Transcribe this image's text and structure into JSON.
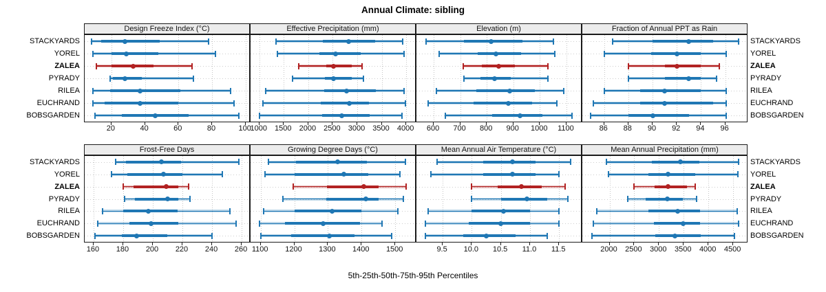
{
  "title": "Annual Climate: sibling",
  "footer": "5th-25th-50th-75th-95th Percentiles",
  "sites": [
    "STACKYARDS",
    "YOREL",
    "ZALEA",
    "PYRADY",
    "RILEA",
    "EUCHRAND",
    "BOBSGARDEN"
  ],
  "highlight_site": "ZALEA",
  "percentile_labels": [
    "5th",
    "25th",
    "50th",
    "75th",
    "95th"
  ],
  "colors": {
    "series_blue": "#1f77b4",
    "series_blue_light": "rgba(31,119,180,0.30)",
    "highlight_red": "#b22222",
    "highlight_red_light": "rgba(178,34,34,0.30)",
    "header_bg": "#ececec",
    "border": "#1a1a1a",
    "grid_dots": "#c4c4c4"
  },
  "chart_data": [
    {
      "type": "interval-dotplot",
      "title": "Design Freeze Index (°C)",
      "domain": [
        4,
        103
      ],
      "ticks": [
        20,
        40,
        60,
        80,
        100
      ],
      "tick_labels": [
        "20",
        "40",
        "60",
        "80",
        "100"
      ],
      "values": [
        [
          8,
          14,
          28,
          49,
          78
        ],
        [
          9,
          20,
          29,
          48,
          82
        ],
        [
          11,
          20,
          33,
          45,
          68
        ],
        [
          19,
          21,
          28,
          38,
          69
        ],
        [
          9,
          19,
          37,
          61,
          91
        ],
        [
          9,
          16,
          37,
          60,
          93
        ],
        [
          10,
          26,
          46,
          66,
          96
        ]
      ]
    },
    {
      "type": "interval-dotplot",
      "title": "Effective Precipitation (mm)",
      "domain": [
        820,
        4210
      ],
      "ticks": [
        1000,
        1500,
        2000,
        2500,
        3000,
        3500,
        4000
      ],
      "tick_labels": [
        "1000",
        "1500",
        "2000",
        "2500",
        "3000",
        "3500",
        "4000"
      ],
      "values": [
        [
          1340,
          2300,
          2820,
          3370,
          3930
        ],
        [
          1370,
          2230,
          2560,
          3070,
          3960
        ],
        [
          1810,
          2360,
          2510,
          2880,
          3100
        ],
        [
          1680,
          2340,
          2510,
          2890,
          3130
        ],
        [
          1130,
          2320,
          2780,
          3380,
          3950
        ],
        [
          1070,
          2260,
          2840,
          3240,
          3990
        ],
        [
          1000,
          2280,
          2680,
          3250,
          3920
        ]
      ]
    },
    {
      "type": "interval-dotplot",
      "title": "Elevation (m)",
      "domain": [
        535,
        1160
      ],
      "ticks": [
        600,
        700,
        800,
        900,
        1000,
        1100
      ],
      "tick_labels": [
        "600",
        "700",
        "800",
        "900",
        "1000",
        "1100"
      ],
      "values": [
        [
          570,
          715,
          815,
          935,
          1050
        ],
        [
          620,
          765,
          835,
          930,
          1055
        ],
        [
          710,
          780,
          845,
          905,
          1030
        ],
        [
          715,
          775,
          830,
          890,
          1030
        ],
        [
          610,
          760,
          885,
          980,
          1090
        ],
        [
          580,
          750,
          880,
          970,
          1065
        ],
        [
          645,
          820,
          925,
          1010,
          1120
        ]
      ]
    },
    {
      "type": "interval-dotplot",
      "title": "Fraction of Annual PPT as Rain",
      "domain": [
        84.2,
        97.9
      ],
      "ticks": [
        86,
        88,
        90,
        92,
        94,
        96
      ],
      "tick_labels": [
        "86",
        "88",
        "90",
        "92",
        "94",
        "96"
      ],
      "values": [
        [
          86.7,
          90.0,
          93.0,
          95.0,
          97.1
        ],
        [
          86.0,
          89.9,
          92.0,
          94.0,
          96.1
        ],
        [
          88.0,
          91.0,
          92.0,
          94.0,
          95.5
        ],
        [
          88.0,
          91.0,
          93.0,
          94.0,
          95.3
        ],
        [
          86.0,
          89.0,
          91.0,
          94.0,
          96.1
        ],
        [
          85.1,
          89.0,
          91.0,
          95.0,
          96.1
        ],
        [
          84.9,
          88.0,
          90.0,
          93.0,
          96.1
        ]
      ]
    },
    {
      "type": "interval-dotplot",
      "title": "Frost-Free Days",
      "domain": [
        154,
        266
      ],
      "ticks": [
        160,
        180,
        200,
        220,
        240,
        260
      ],
      "tick_labels": [
        "160",
        "180",
        "200",
        "220",
        "240",
        "260"
      ],
      "values": [
        [
          175,
          182,
          206,
          219,
          258
        ],
        [
          172,
          183,
          207,
          220,
          247
        ],
        [
          180,
          187,
          209,
          217,
          224
        ],
        [
          181,
          188,
          210,
          217,
          225
        ],
        [
          166,
          180,
          197,
          217,
          252
        ],
        [
          163,
          184,
          199,
          217,
          256
        ],
        [
          161,
          179,
          189,
          210,
          240
        ]
      ]
    },
    {
      "type": "interval-dotplot",
      "title": "Growing Degree Days (°C)",
      "domain": [
        1070,
        1563
      ],
      "ticks": [
        1100,
        1200,
        1300,
        1400,
        1500
      ],
      "tick_labels": [
        "1100",
        "1200",
        "1300",
        "1400",
        "1500"
      ],
      "values": [
        [
          1123,
          1205,
          1328,
          1415,
          1530
        ],
        [
          1112,
          1201,
          1347,
          1420,
          1513
        ],
        [
          1196,
          1296,
          1407,
          1451,
          1532
        ],
        [
          1166,
          1294,
          1412,
          1450,
          1524
        ],
        [
          1109,
          1201,
          1313,
          1400,
          1508
        ],
        [
          1097,
          1172,
          1286,
          1395,
          1461
        ],
        [
          1101,
          1190,
          1304,
          1378,
          1490
        ]
      ]
    },
    {
      "type": "interval-dotplot",
      "title": "Mean Annual Air Temperature (°C)",
      "domain": [
        9.05,
        11.9
      ],
      "ticks": [
        9.5,
        10.0,
        10.5,
        11.0,
        11.5
      ],
      "tick_labels": [
        "9.5",
        "10.0",
        "10.5",
        "11.0",
        "11.5"
      ],
      "values": [
        [
          9.4,
          10.2,
          10.7,
          11.1,
          11.7
        ],
        [
          9.3,
          10.2,
          10.7,
          11.1,
          11.5
        ],
        [
          10.0,
          10.45,
          10.85,
          11.2,
          11.6
        ],
        [
          10.0,
          10.5,
          10.95,
          11.3,
          11.65
        ],
        [
          9.25,
          10.0,
          10.55,
          11.0,
          11.5
        ],
        [
          9.2,
          9.95,
          10.5,
          11.0,
          11.5
        ],
        [
          9.2,
          9.85,
          10.25,
          10.75,
          11.3
        ]
      ]
    },
    {
      "type": "interval-dotplot",
      "title": "Mean Annual Precipitation (mm)",
      "domain": [
        1450,
        4805
      ],
      "ticks": [
        2000,
        2500,
        3000,
        3500,
        4000,
        4500
      ],
      "tick_labels": [
        "2000",
        "2500",
        "3000",
        "3500",
        "4000",
        "4500"
      ],
      "values": [
        [
          1940,
          2850,
          3440,
          3820,
          4610
        ],
        [
          1975,
          2790,
          3180,
          3730,
          4590
        ],
        [
          2500,
          2910,
          3180,
          3570,
          3730
        ],
        [
          2370,
          2730,
          3165,
          3490,
          3755
        ],
        [
          1740,
          2790,
          3375,
          3825,
          4580
        ],
        [
          1675,
          2895,
          3490,
          3835,
          4615
        ],
        [
          1645,
          2920,
          3325,
          3850,
          4525
        ]
      ]
    }
  ]
}
